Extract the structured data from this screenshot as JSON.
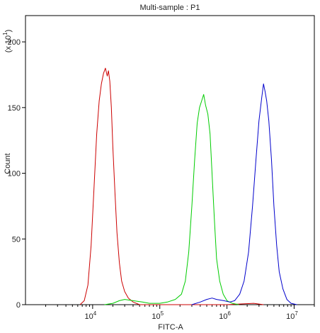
{
  "chart_data": {
    "type": "line",
    "title": "Multi-sample : P1",
    "xlabel": "FITC-A",
    "ylabel": "Count",
    "y_multiplier_label": "(x 10",
    "y_multiplier_exp": "1",
    "x_scale": "log",
    "xlim": [
      1000,
      20000000
    ],
    "ylim": [
      0,
      220
    ],
    "x_ticks": [
      {
        "value": 10000,
        "base": "10",
        "exp": "4"
      },
      {
        "value": 100000,
        "base": "10",
        "exp": "5"
      },
      {
        "value": 1000000,
        "base": "10",
        "exp": "6"
      },
      {
        "value": 10000000,
        "base": "10",
        "exp": "7"
      }
    ],
    "y_ticks": [
      0,
      50,
      100,
      150,
      200
    ],
    "grid": false,
    "series": [
      {
        "color": "#cc0000",
        "points": [
          [
            6500,
            0
          ],
          [
            7500,
            3
          ],
          [
            8500,
            15
          ],
          [
            9500,
            45
          ],
          [
            10500,
            90
          ],
          [
            11500,
            130
          ],
          [
            12500,
            155
          ],
          [
            13500,
            168
          ],
          [
            14500,
            176
          ],
          [
            15500,
            180
          ],
          [
            16500,
            174
          ],
          [
            17200,
            178
          ],
          [
            18000,
            170
          ],
          [
            19000,
            150
          ],
          [
            20000,
            120
          ],
          [
            21500,
            85
          ],
          [
            23000,
            55
          ],
          [
            25000,
            32
          ],
          [
            27000,
            18
          ],
          [
            30000,
            10
          ],
          [
            34000,
            5
          ],
          [
            40000,
            2
          ],
          [
            50000,
            0
          ],
          [
            200000,
            0
          ],
          [
            1000000,
            0
          ],
          [
            2500000,
            1
          ],
          [
            3500000,
            0
          ]
        ]
      },
      {
        "color": "#00cc00",
        "points": [
          [
            15000,
            0
          ],
          [
            20000,
            1
          ],
          [
            25000,
            3
          ],
          [
            30000,
            4
          ],
          [
            40000,
            3
          ],
          [
            55000,
            2
          ],
          [
            70000,
            1
          ],
          [
            100000,
            1
          ],
          [
            130000,
            2
          ],
          [
            170000,
            4
          ],
          [
            210000,
            8
          ],
          [
            240000,
            18
          ],
          [
            270000,
            40
          ],
          [
            300000,
            75
          ],
          [
            330000,
            110
          ],
          [
            360000,
            138
          ],
          [
            390000,
            150
          ],
          [
            420000,
            155
          ],
          [
            450000,
            160
          ],
          [
            480000,
            152
          ],
          [
            520000,
            145
          ],
          [
            560000,
            130
          ],
          [
            600000,
            100
          ],
          [
            650000,
            65
          ],
          [
            700000,
            35
          ],
          [
            780000,
            18
          ],
          [
            880000,
            8
          ],
          [
            1000000,
            3
          ],
          [
            1200000,
            1
          ],
          [
            1500000,
            0
          ]
        ]
      },
      {
        "color": "#0000cc",
        "points": [
          [
            300000,
            0
          ],
          [
            400000,
            2
          ],
          [
            500000,
            4
          ],
          [
            600000,
            5
          ],
          [
            700000,
            4
          ],
          [
            900000,
            3
          ],
          [
            1100000,
            2
          ],
          [
            1300000,
            3
          ],
          [
            1550000,
            8
          ],
          [
            1800000,
            18
          ],
          [
            2100000,
            40
          ],
          [
            2400000,
            75
          ],
          [
            2700000,
            110
          ],
          [
            3000000,
            140
          ],
          [
            3300000,
            158
          ],
          [
            3500000,
            168
          ],
          [
            3700000,
            162
          ],
          [
            3900000,
            155
          ],
          [
            4200000,
            140
          ],
          [
            4600000,
            110
          ],
          [
            5000000,
            75
          ],
          [
            5500000,
            45
          ],
          [
            6000000,
            25
          ],
          [
            6800000,
            12
          ],
          [
            7800000,
            4
          ],
          [
            9000000,
            1
          ],
          [
            11000000,
            0
          ]
        ]
      }
    ]
  }
}
